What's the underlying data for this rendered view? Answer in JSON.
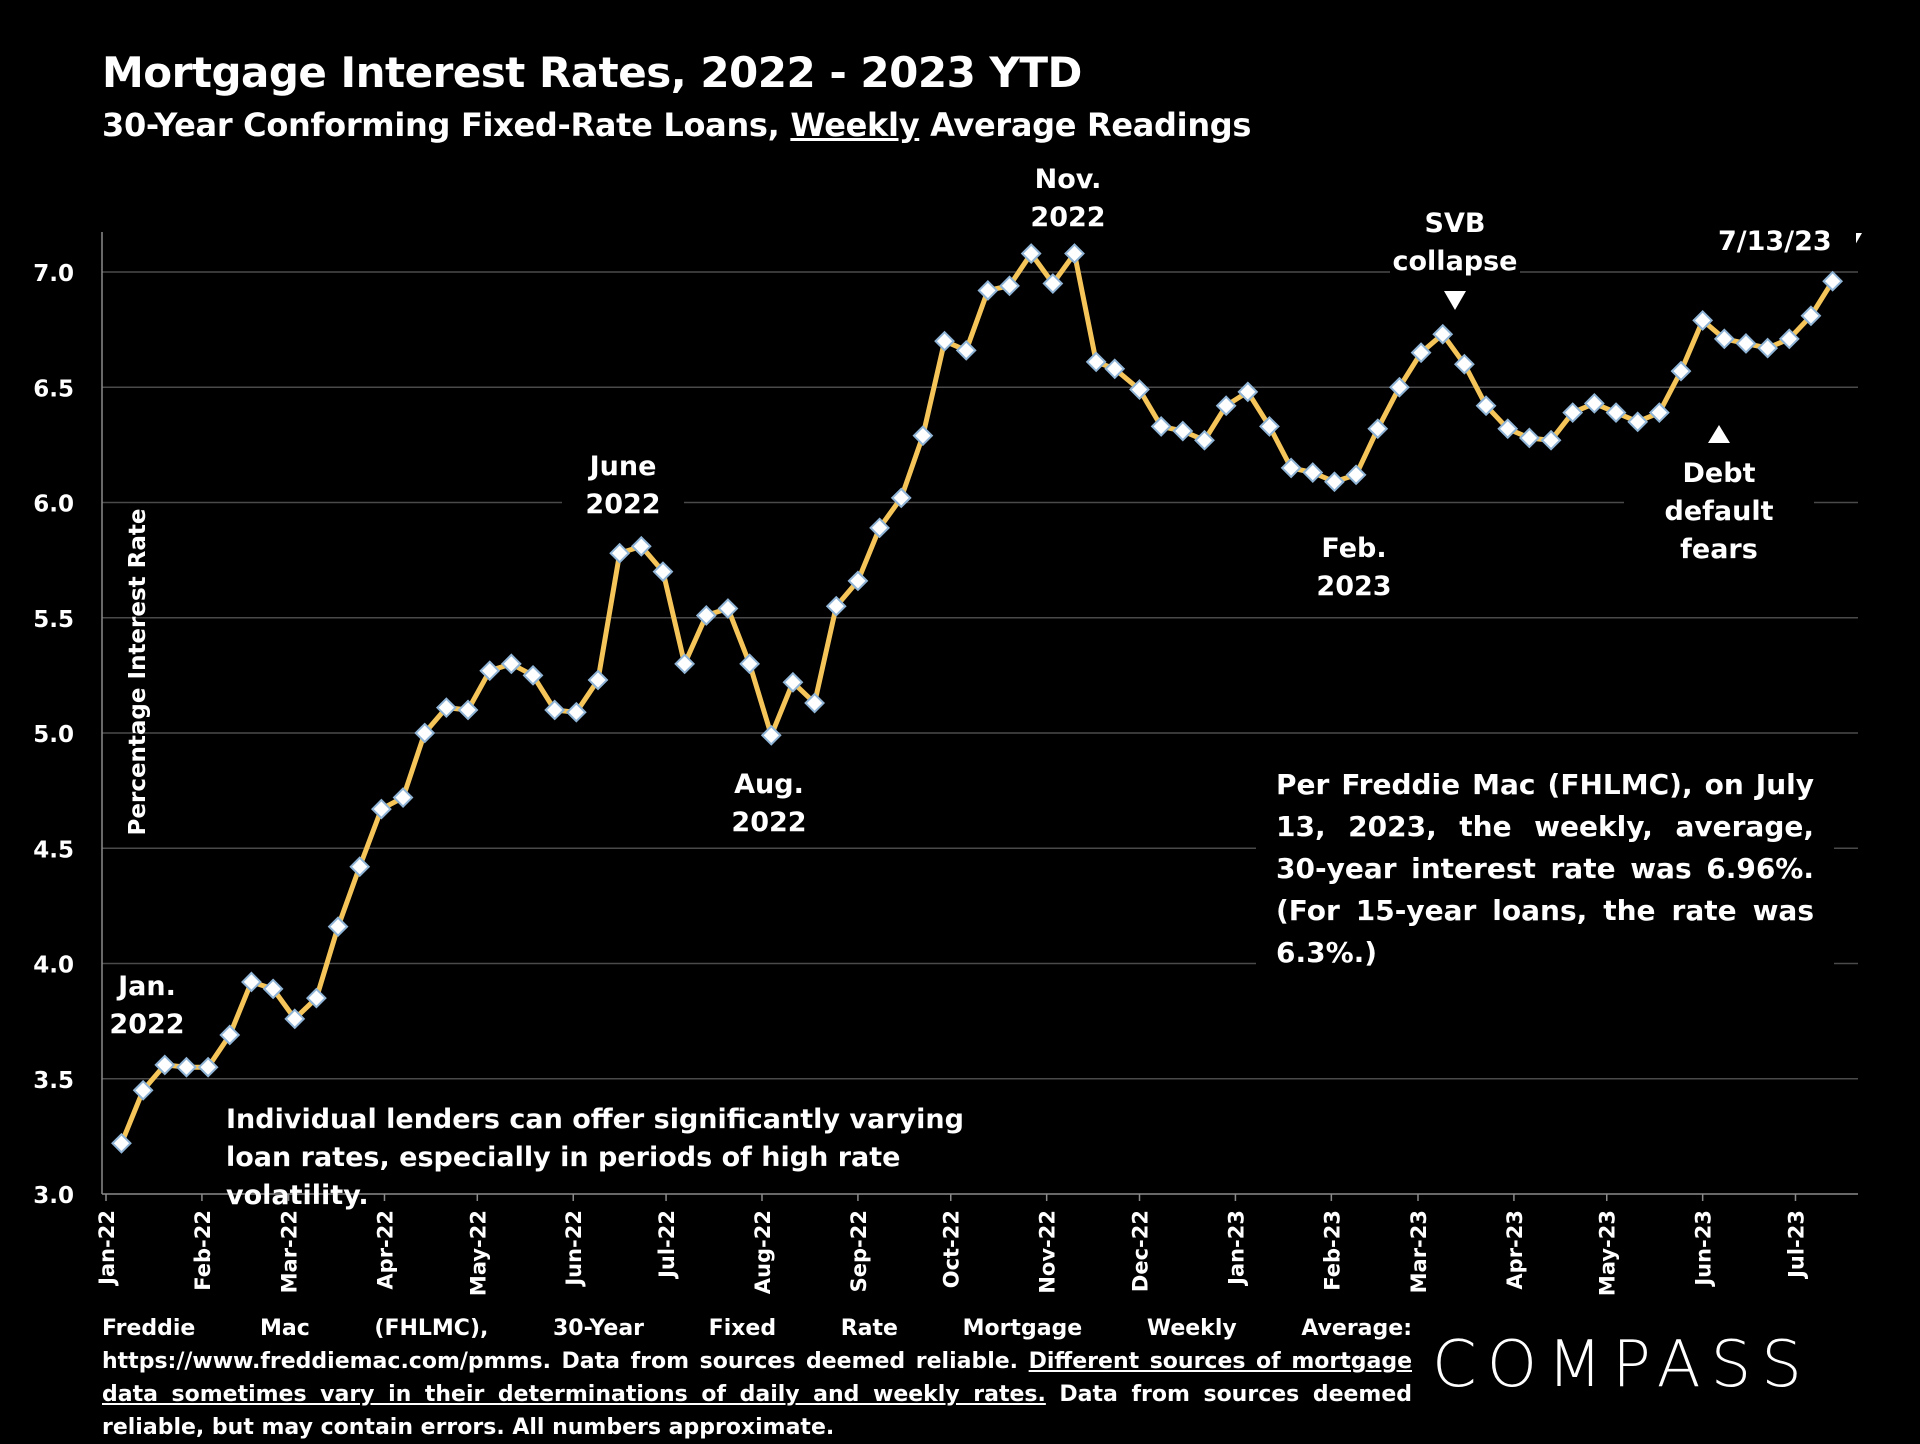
{
  "title": "Mortgage Interest Rates, 2022 - 2023 YTD",
  "subtitle": {
    "before": "30-Year Conforming Fixed-Rate Loans, ",
    "underlined": "Weekly",
    "after": " Average Readings"
  },
  "chart_data": {
    "type": "line",
    "ylabel": "Percentage Interest  Rate",
    "ylim": [
      3.0,
      7.2
    ],
    "yticks": [
      "3.0",
      "3.5",
      "4.0",
      "4.5",
      "5.0",
      "5.5",
      "6.0",
      "6.5",
      "7.0"
    ],
    "xticks": [
      "Jan-22",
      "Feb-22",
      "Mar-22",
      "Apr-22",
      "May-22",
      "Jun-22",
      "Jul-22",
      "Aug-22",
      "Sep-22",
      "Oct-22",
      "Nov-22",
      "Dec-22",
      "Jan-23",
      "Feb-23",
      "Mar-23",
      "Apr-23",
      "May-23",
      "Jun-23",
      "Jul-23"
    ],
    "grid": true,
    "line_color": "#f5c55a",
    "marker_color": "#dbe8f4",
    "series": [
      {
        "x": [
          "2022-01-06",
          "2022-01-13",
          "2022-01-20",
          "2022-01-27",
          "2022-02-03",
          "2022-02-10",
          "2022-02-17",
          "2022-02-24",
          "2022-03-03",
          "2022-03-10",
          "2022-03-17",
          "2022-03-24",
          "2022-03-31",
          "2022-04-07",
          "2022-04-14",
          "2022-04-21",
          "2022-04-28",
          "2022-05-05",
          "2022-05-12",
          "2022-05-19",
          "2022-05-26",
          "2022-06-02",
          "2022-06-09",
          "2022-06-16",
          "2022-06-23",
          "2022-06-30",
          "2022-07-07",
          "2022-07-14",
          "2022-07-21",
          "2022-07-28",
          "2022-08-04",
          "2022-08-11",
          "2022-08-18",
          "2022-08-25",
          "2022-09-01",
          "2022-09-08",
          "2022-09-15",
          "2022-09-22",
          "2022-09-29",
          "2022-10-06",
          "2022-10-13",
          "2022-10-20",
          "2022-10-27",
          "2022-11-03",
          "2022-11-10",
          "2022-11-17",
          "2022-11-23",
          "2022-12-01",
          "2022-12-08",
          "2022-12-15",
          "2022-12-22",
          "2022-12-29",
          "2023-01-05",
          "2023-01-12",
          "2023-01-19",
          "2023-01-26",
          "2023-02-02",
          "2023-02-09",
          "2023-02-16",
          "2023-02-23",
          "2023-03-02",
          "2023-03-09",
          "2023-03-16",
          "2023-03-23",
          "2023-03-30",
          "2023-04-06",
          "2023-04-13",
          "2023-04-20",
          "2023-04-27",
          "2023-05-04",
          "2023-05-11",
          "2023-05-18",
          "2023-05-25",
          "2023-06-01",
          "2023-06-08",
          "2023-06-15",
          "2023-06-22",
          "2023-06-29",
          "2023-07-06",
          "2023-07-13"
        ],
        "values": [
          3.22,
          3.45,
          3.56,
          3.55,
          3.55,
          3.69,
          3.92,
          3.89,
          3.76,
          3.85,
          4.16,
          4.42,
          4.67,
          4.72,
          5.0,
          5.11,
          5.1,
          5.27,
          5.3,
          5.25,
          5.1,
          5.09,
          5.23,
          5.78,
          5.81,
          5.7,
          5.3,
          5.51,
          5.54,
          5.3,
          4.99,
          5.22,
          5.13,
          5.55,
          5.66,
          5.89,
          6.02,
          6.29,
          6.7,
          6.66,
          6.92,
          6.94,
          7.08,
          6.95,
          7.08,
          6.61,
          6.58,
          6.49,
          6.33,
          6.31,
          6.27,
          6.42,
          6.48,
          6.33,
          6.15,
          6.13,
          6.09,
          6.12,
          6.32,
          6.5,
          6.65,
          6.73,
          6.6,
          6.42,
          6.32,
          6.28,
          6.27,
          6.39,
          6.43,
          6.39,
          6.35,
          6.39,
          6.57,
          6.79,
          6.71,
          6.69,
          6.67,
          6.71,
          6.81,
          6.96
        ]
      }
    ],
    "annotations": [
      {
        "id": "jan22",
        "text_lines": [
          "Jan.",
          "2022"
        ]
      },
      {
        "id": "jun22",
        "text_lines": [
          "June",
          "2022"
        ]
      },
      {
        "id": "aug22",
        "text_lines": [
          "Aug.",
          "2022"
        ]
      },
      {
        "id": "nov22",
        "text_lines": [
          "Nov.",
          "2022"
        ]
      },
      {
        "id": "feb23",
        "text_lines": [
          "Feb.",
          "2023"
        ]
      },
      {
        "id": "svb",
        "text_lines": [
          "SVB",
          "collapse"
        ]
      },
      {
        "id": "debt",
        "text_lines": [
          "Debt default",
          "fears"
        ]
      },
      {
        "id": "latest",
        "text_lines": [
          "7/13/23"
        ]
      }
    ]
  },
  "notes": {
    "lenders": "Individual lenders can offer significantly varying loan rates, especially in periods of high rate volatility.",
    "freddie": "Per Freddie Mac (FHLMC), on July 13, 2023, the weekly, average, 30-year interest rate was 6.96%. (For 15-year loans, the rate was 6.3%.)"
  },
  "footer": {
    "part1": "Freddie Mac (FHLMC), 30-Year Fixed Rate Mortgage Weekly Average:  https://www.freddiemac.com/pmms. Data from sources deemed reliable. ",
    "underlined": "Different sources of mortgage data sometimes vary in their determinations of daily and weekly rates.",
    "part2": " Data from sources deemed reliable, but may contain errors. All numbers approximate."
  },
  "logo": {
    "text": "COMPASS"
  }
}
